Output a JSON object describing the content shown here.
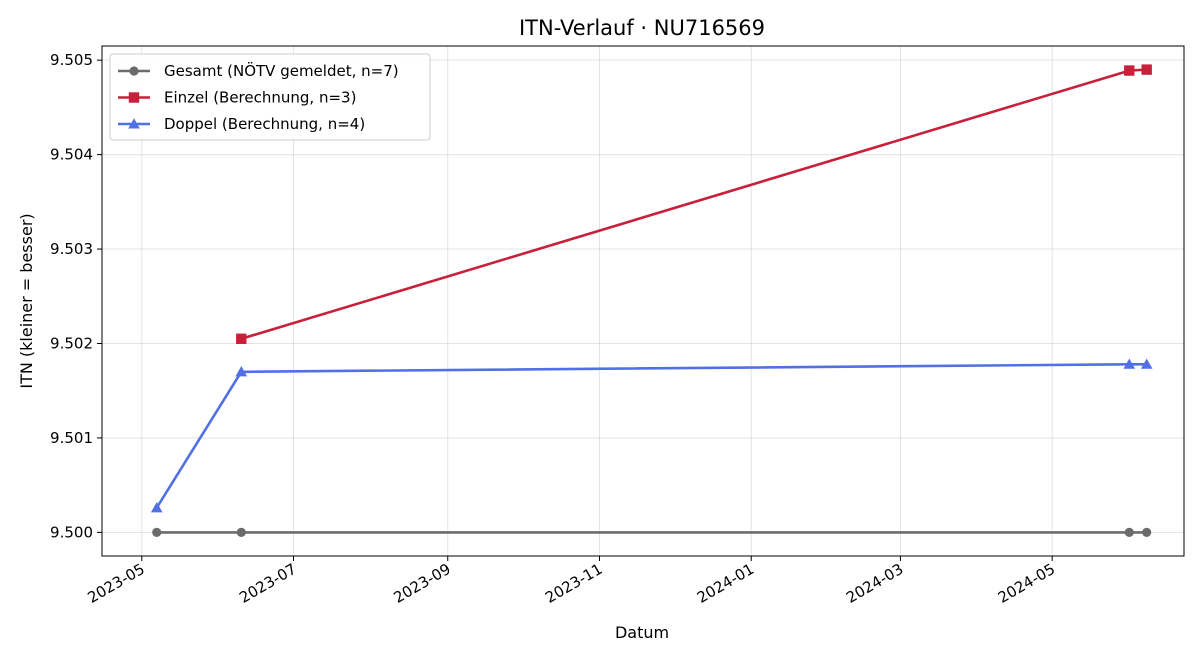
{
  "chart_data": {
    "type": "line",
    "title": "ITN-Verlauf · NU716569",
    "xlabel": "Datum",
    "ylabel": "ITN  (kleiner = besser)",
    "x_type": "date",
    "xlim": [
      "2023-04-15",
      "2024-06-23"
    ],
    "ylim": [
      9.49975,
      9.50515
    ],
    "x_ticks": [
      "2023-05-01",
      "2023-07-01",
      "2023-09-01",
      "2023-11-01",
      "2024-01-01",
      "2024-03-01",
      "2024-05-01"
    ],
    "x_tick_labels": [
      "2023-05",
      "2023-07",
      "2023-09",
      "2023-11",
      "2024-01",
      "2024-03",
      "2024-05"
    ],
    "y_ticks": [
      9.5,
      9.501,
      9.502,
      9.503,
      9.504,
      9.505
    ],
    "y_tick_labels": [
      "9.500",
      "9.501",
      "9.502",
      "9.503",
      "9.504",
      "9.505"
    ],
    "grid": true,
    "legend_position": "top-left",
    "series": [
      {
        "name": "Gesamt (NÖTV gemeldet, n=7)",
        "color": "#6b6b6b",
        "marker": "circle",
        "points": [
          {
            "x": "2023-05-07",
            "y": 9.5
          },
          {
            "x": "2023-06-10",
            "y": 9.5
          },
          {
            "x": "2024-06-01",
            "y": 9.5
          },
          {
            "x": "2024-06-08",
            "y": 9.5
          }
        ]
      },
      {
        "name": "Einzel (Berechnung, n=3)",
        "color": "#c8203b",
        "marker": "square",
        "points": [
          {
            "x": "2023-06-10",
            "y": 9.50205
          },
          {
            "x": "2024-06-01",
            "y": 9.50489
          },
          {
            "x": "2024-06-08",
            "y": 9.5049
          }
        ]
      },
      {
        "name": "Doppel (Berechnung, n=4)",
        "color": "#5170e5",
        "marker": "triangle",
        "points": [
          {
            "x": "2023-05-07",
            "y": 9.50026
          },
          {
            "x": "2023-06-10",
            "y": 9.5017
          },
          {
            "x": "2024-06-01",
            "y": 9.50178
          },
          {
            "x": "2024-06-08",
            "y": 9.50178
          }
        ]
      }
    ]
  }
}
